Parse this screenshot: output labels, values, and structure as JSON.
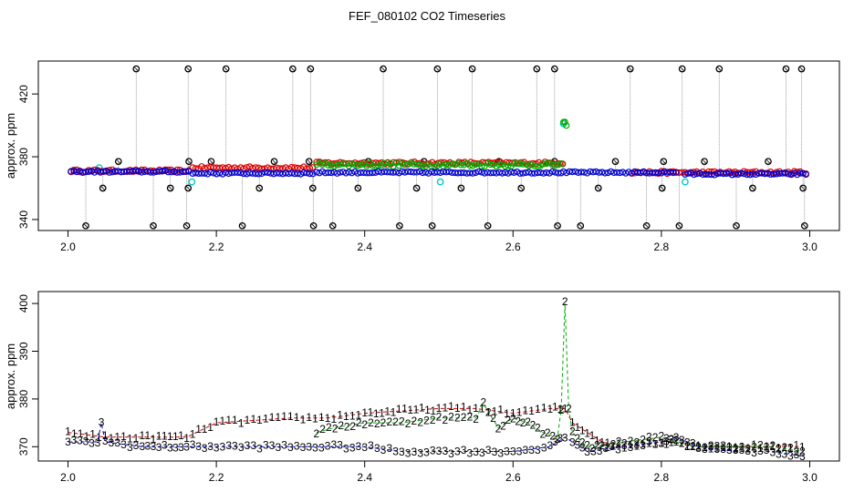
{
  "title": "FEF_080102  CO2 Timeseries",
  "chart_data": [
    {
      "type": "scatter",
      "ylabel": "approx. ppm",
      "xlim": [
        1.96,
        3.04
      ],
      "ylim": [
        333,
        441
      ],
      "xticks": [
        "2.0",
        "2.2",
        "2.4",
        "2.6",
        "2.8",
        "3.0"
      ],
      "yticks": [
        "340",
        "380",
        "420"
      ],
      "series": [
        {
          "color": "#000000",
          "kind": "outliers",
          "baseline": 370,
          "high": 436,
          "low": 336,
          "mid": 377,
          "midlow": 360,
          "x_high": [
            2.092,
            2.162,
            2.213,
            2.303,
            2.327,
            2.425,
            2.498,
            2.545,
            2.632,
            2.656,
            2.758,
            2.828,
            2.878,
            2.968,
            2.989
          ],
          "x_low": [
            2.024,
            2.115,
            2.16,
            2.235,
            2.331,
            2.357,
            2.447,
            2.491,
            2.566,
            2.66,
            2.691,
            2.78,
            2.824,
            2.901,
            2.993
          ],
          "x_mid": [
            2.068,
            2.163,
            2.193,
            2.278,
            2.325,
            2.405,
            2.48,
            2.581,
            2.656,
            2.738,
            2.803,
            2.858,
            2.944
          ],
          "x_midlow": [
            2.047,
            2.138,
            2.162,
            2.258,
            2.33,
            2.391,
            2.47,
            2.53,
            2.611,
            2.715,
            2.801,
            2.923,
            2.991
          ]
        },
        {
          "color": "#00c8c8",
          "kind": "points",
          "x": [
            2.042,
            2.167,
            2.502,
            2.668,
            2.832
          ],
          "y": [
            373,
            364,
            364,
            401,
            364
          ]
        },
        {
          "color": "#dd0000",
          "kind": "band",
          "segments": [
            [
              2.004,
              2.163,
              371
            ],
            [
              2.168,
              2.33,
              373
            ],
            [
              2.335,
              2.667,
              376
            ],
            [
              2.76,
              2.995,
              370
            ]
          ],
          "noise": 0.8
        },
        {
          "color": "#00aa00",
          "kind": "band",
          "segments": [
            [
              2.335,
              2.665,
              375
            ],
            [
              2.668,
              2.672,
              401
            ]
          ],
          "noise": 1.2
        },
        {
          "color": "#0000cc",
          "kind": "band",
          "segments": [
            [
              2.004,
              2.163,
              370.5
            ],
            [
              2.168,
              2.33,
              369.5
            ],
            [
              2.335,
              2.665,
              370
            ],
            [
              2.668,
              2.82,
              370
            ],
            [
              2.832,
              2.995,
              369
            ]
          ],
          "noise": 0.6
        }
      ]
    },
    {
      "type": "line",
      "ylabel": "approx. ppm",
      "xlim": [
        1.96,
        3.04
      ],
      "ylim": [
        367,
        402.5
      ],
      "xticks": [
        "2.0",
        "2.2",
        "2.4",
        "2.6",
        "2.8",
        "3.0"
      ],
      "yticks": [
        "370",
        "380",
        "390",
        "400"
      ],
      "series": [
        {
          "name": "1",
          "color": "#cc0000",
          "x": [
            2.0,
            2.05,
            2.1,
            2.16,
            2.2,
            2.3,
            2.35,
            2.4,
            2.5,
            2.55,
            2.6,
            2.65,
            2.67,
            2.68,
            2.7,
            2.72,
            2.75,
            2.8,
            2.82,
            2.85,
            2.9,
            2.95,
            2.99
          ],
          "y": [
            373,
            372,
            372,
            372,
            375,
            376,
            376,
            377,
            378,
            378,
            377,
            378,
            378,
            375,
            373,
            371,
            370,
            371,
            371,
            370,
            370,
            370,
            370
          ]
        },
        {
          "name": "2",
          "color": "#00aa00",
          "x": [
            2.335,
            2.36,
            2.4,
            2.45,
            2.5,
            2.55,
            2.56,
            2.58,
            2.6,
            2.62,
            2.64,
            2.66,
            2.665,
            2.67,
            2.675,
            2.68,
            2.7,
            2.72,
            2.75,
            2.8,
            2.82,
            2.85,
            2.9,
            2.95,
            2.99
          ],
          "y": [
            373,
            374,
            375,
            375,
            376,
            376,
            379,
            374,
            376,
            375,
            373,
            372,
            378,
            400,
            378,
            373,
            370,
            370,
            371,
            372,
            371,
            370,
            370,
            370,
            369
          ]
        },
        {
          "name": "3",
          "color": "#0000bb",
          "x": [
            2.0,
            2.04,
            2.045,
            2.05,
            2.1,
            2.16,
            2.2,
            2.3,
            2.35,
            2.4,
            2.45,
            2.5,
            2.55,
            2.6,
            2.65,
            2.67,
            2.68,
            2.7,
            2.75,
            2.8,
            2.82,
            2.85,
            2.9,
            2.95,
            2.99
          ],
          "y": [
            371,
            371,
            375,
            371,
            370,
            370,
            370,
            370,
            370,
            370,
            369,
            369,
            369,
            369,
            370,
            372,
            371,
            369,
            370,
            371,
            372,
            370,
            369,
            369,
            368
          ]
        }
      ]
    }
  ]
}
